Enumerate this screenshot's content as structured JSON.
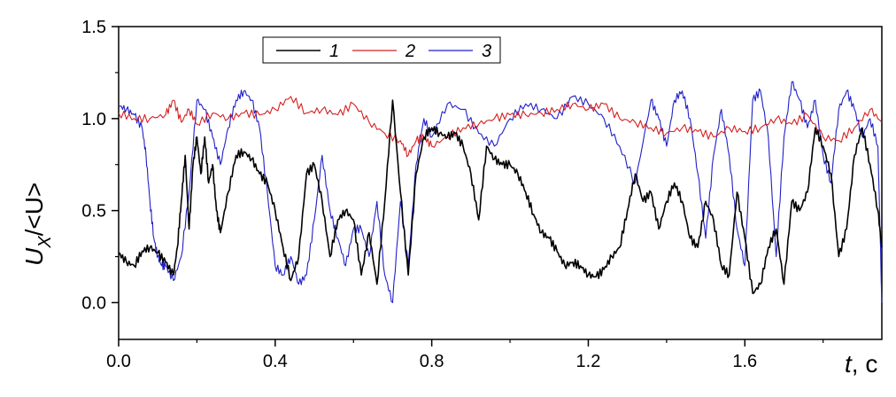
{
  "chart_data": {
    "type": "line",
    "xlabel_var": "t",
    "xlabel_unit": ", c",
    "ylabel_main": "U",
    "ylabel_sub": "X",
    "ylabel_rest": "/<U>",
    "xlim": [
      0.0,
      1.95
    ],
    "ylim": [
      -0.2,
      1.5
    ],
    "xticks": [
      0.0,
      0.4,
      0.8,
      1.2,
      1.6
    ],
    "xtick_labels": [
      "0.0",
      "0.4",
      "0.8",
      "1.2",
      "1.6"
    ],
    "yticks": [
      0.0,
      0.5,
      1.0,
      1.5
    ],
    "ytick_labels": [
      "0.0",
      "0.5",
      "1.0",
      "1.5"
    ],
    "grid": false,
    "legend_position": "top-left",
    "series": [
      {
        "name": "1",
        "color": "#000000",
        "x": [
          0.0,
          0.02,
          0.04,
          0.06,
          0.08,
          0.1,
          0.12,
          0.14,
          0.15,
          0.16,
          0.17,
          0.18,
          0.19,
          0.2,
          0.21,
          0.22,
          0.23,
          0.24,
          0.25,
          0.26,
          0.28,
          0.3,
          0.32,
          0.34,
          0.36,
          0.38,
          0.4,
          0.42,
          0.44,
          0.46,
          0.48,
          0.5,
          0.52,
          0.54,
          0.56,
          0.58,
          0.6,
          0.62,
          0.64,
          0.66,
          0.68,
          0.7,
          0.72,
          0.74,
          0.76,
          0.78,
          0.8,
          0.82,
          0.84,
          0.86,
          0.88,
          0.9,
          0.92,
          0.94,
          0.96,
          0.98,
          1.0,
          1.02,
          1.04,
          1.06,
          1.08,
          1.1,
          1.12,
          1.14,
          1.16,
          1.18,
          1.2,
          1.22,
          1.24,
          1.26,
          1.28,
          1.3,
          1.32,
          1.34,
          1.36,
          1.38,
          1.4,
          1.42,
          1.44,
          1.46,
          1.48,
          1.5,
          1.52,
          1.54,
          1.56,
          1.58,
          1.6,
          1.62,
          1.64,
          1.66,
          1.68,
          1.7,
          1.72,
          1.74,
          1.76,
          1.78,
          1.8,
          1.82,
          1.84,
          1.86,
          1.88,
          1.9,
          1.92,
          1.94,
          1.95
        ],
        "y": [
          0.27,
          0.22,
          0.2,
          0.28,
          0.3,
          0.27,
          0.22,
          0.15,
          0.3,
          0.55,
          0.8,
          0.4,
          0.75,
          0.9,
          0.7,
          0.9,
          0.65,
          0.75,
          0.5,
          0.38,
          0.6,
          0.8,
          0.82,
          0.78,
          0.7,
          0.65,
          0.5,
          0.3,
          0.12,
          0.25,
          0.7,
          0.75,
          0.55,
          0.25,
          0.45,
          0.5,
          0.45,
          0.15,
          0.38,
          0.1,
          0.55,
          1.1,
          0.6,
          0.15,
          0.7,
          0.9,
          0.95,
          0.92,
          0.9,
          0.92,
          0.85,
          0.7,
          0.45,
          0.85,
          0.78,
          0.75,
          0.75,
          0.7,
          0.6,
          0.48,
          0.38,
          0.35,
          0.28,
          0.2,
          0.22,
          0.2,
          0.15,
          0.14,
          0.18,
          0.25,
          0.3,
          0.5,
          0.7,
          0.55,
          0.6,
          0.4,
          0.55,
          0.65,
          0.55,
          0.35,
          0.3,
          0.55,
          0.45,
          0.2,
          0.15,
          0.6,
          0.35,
          0.05,
          0.1,
          0.3,
          0.4,
          0.1,
          0.55,
          0.5,
          0.6,
          0.95,
          0.85,
          0.7,
          0.25,
          0.4,
          0.8,
          0.95,
          0.75,
          0.5,
          0.3
        ]
      },
      {
        "name": "2",
        "color": "#d42020",
        "x": [
          0.0,
          0.04,
          0.08,
          0.12,
          0.14,
          0.16,
          0.18,
          0.2,
          0.24,
          0.28,
          0.32,
          0.36,
          0.4,
          0.44,
          0.48,
          0.52,
          0.56,
          0.6,
          0.64,
          0.68,
          0.72,
          0.74,
          0.76,
          0.78,
          0.8,
          0.84,
          0.88,
          0.92,
          0.96,
          1.0,
          1.04,
          1.08,
          1.12,
          1.16,
          1.2,
          1.24,
          1.28,
          1.32,
          1.36,
          1.4,
          1.44,
          1.48,
          1.52,
          1.56,
          1.6,
          1.64,
          1.68,
          1.72,
          1.76,
          1.8,
          1.84,
          1.88,
          1.92,
          1.95
        ],
        "y": [
          1.03,
          1.0,
          1.0,
          1.02,
          1.1,
          0.98,
          1.05,
          0.97,
          1.03,
          1.0,
          1.03,
          1.02,
          1.05,
          1.12,
          1.03,
          1.05,
          1.02,
          1.08,
          0.98,
          0.92,
          0.88,
          0.8,
          0.88,
          0.9,
          0.85,
          0.9,
          0.95,
          0.97,
          1.0,
          1.02,
          1.02,
          1.03,
          1.05,
          1.08,
          1.05,
          1.08,
          1.0,
          0.98,
          0.95,
          0.92,
          0.95,
          0.93,
          0.9,
          0.95,
          0.93,
          0.95,
          1.0,
          0.97,
          1.02,
          0.9,
          0.88,
          0.95,
          1.05,
          0.98
        ]
      },
      {
        "name": "3",
        "color": "#1f1fc8",
        "x": [
          0.0,
          0.02,
          0.04,
          0.06,
          0.07,
          0.08,
          0.09,
          0.1,
          0.11,
          0.12,
          0.14,
          0.16,
          0.18,
          0.2,
          0.22,
          0.24,
          0.26,
          0.28,
          0.3,
          0.32,
          0.34,
          0.36,
          0.38,
          0.4,
          0.42,
          0.44,
          0.46,
          0.48,
          0.5,
          0.52,
          0.54,
          0.56,
          0.58,
          0.6,
          0.62,
          0.64,
          0.66,
          0.68,
          0.7,
          0.72,
          0.74,
          0.76,
          0.78,
          0.8,
          0.84,
          0.88,
          0.92,
          0.96,
          1.0,
          1.04,
          1.08,
          1.12,
          1.16,
          1.2,
          1.24,
          1.28,
          1.32,
          1.36,
          1.38,
          1.4,
          1.42,
          1.44,
          1.46,
          1.48,
          1.5,
          1.52,
          1.54,
          1.56,
          1.58,
          1.6,
          1.62,
          1.64,
          1.66,
          1.68,
          1.7,
          1.72,
          1.74,
          1.76,
          1.78,
          1.8,
          1.82,
          1.84,
          1.86,
          1.88,
          1.9,
          1.92,
          1.94,
          1.95
        ],
        "y": [
          1.07,
          1.05,
          1.02,
          0.95,
          0.8,
          0.55,
          0.35,
          0.25,
          0.2,
          0.2,
          0.12,
          0.25,
          0.6,
          1.1,
          1.05,
          0.9,
          0.75,
          0.95,
          1.1,
          1.15,
          1.1,
          0.95,
          0.6,
          0.2,
          0.15,
          0.25,
          0.1,
          0.15,
          0.45,
          0.8,
          0.5,
          0.35,
          0.2,
          0.4,
          0.4,
          0.25,
          0.55,
          0.15,
          0.0,
          0.55,
          0.2,
          0.75,
          1.0,
          0.9,
          1.08,
          1.05,
          0.92,
          0.85,
          1.0,
          1.08,
          1.05,
          1.0,
          1.12,
          1.08,
          1.0,
          0.85,
          0.65,
          1.1,
          1.0,
          0.85,
          1.1,
          1.15,
          1.0,
          0.7,
          0.35,
          0.8,
          1.05,
          0.8,
          0.4,
          0.2,
          1.1,
          1.15,
          0.9,
          0.25,
          0.9,
          1.2,
          1.1,
          0.95,
          1.1,
          0.8,
          0.65,
          1.05,
          1.15,
          1.05,
          0.9,
          1.0,
          0.85,
          0.0
        ]
      }
    ]
  }
}
